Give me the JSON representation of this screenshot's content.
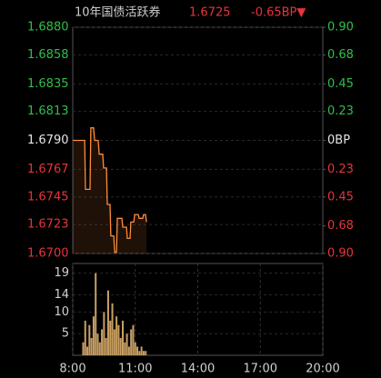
{
  "header": {
    "title": "10年国债活跃券",
    "price": "1.6725",
    "change": "-0.65BP▼"
  },
  "chart_data": [
    {
      "type": "line",
      "color": "#ff8c3a",
      "up_color": "#2fbf4a",
      "down_color": "#e8333a",
      "flat_color": "#e6e6e6",
      "x": [
        8,
        8.57,
        8.61,
        8.83,
        8.87,
        9.0,
        9.05,
        9.22,
        9.27,
        9.44,
        9.48,
        9.62,
        9.66,
        9.79,
        9.83,
        9.97,
        10.01,
        10.1,
        10.14,
        10.36,
        10.4,
        10.58,
        10.62,
        10.75,
        10.79,
        10.93,
        10.97,
        11.14,
        11.19,
        11.36,
        11.4,
        11.49,
        11.54
      ],
      "values": [
        1.679,
        1.679,
        1.6751,
        1.6751,
        1.68,
        1.68,
        1.679,
        1.679,
        1.6779,
        1.6779,
        1.6768,
        1.6768,
        1.6739,
        1.6739,
        1.6714,
        1.6714,
        1.6701,
        1.6701,
        1.6728,
        1.6728,
        1.6721,
        1.6721,
        1.6712,
        1.6712,
        1.6725,
        1.6725,
        1.6731,
        1.6731,
        1.6728,
        1.6728,
        1.6731,
        1.6731,
        1.6725
      ],
      "xlim": [
        8,
        20
      ],
      "ylim": [
        1.67,
        1.688
      ],
      "yticks": [
        {
          "value": 1.688,
          "label": "1.6880"
        },
        1.6858,
        1.6835,
        1.6813,
        {
          "value": 1.679,
          "label": "1.6790"
        },
        1.6767,
        1.6745,
        1.6723,
        {
          "value": 1.67,
          "label": "1.6700"
        }
      ],
      "y2lim": [
        -0.9,
        0.9
      ],
      "y2ticks": [
        {
          "value": 0.9,
          "label": "0.90"
        },
        0.68,
        0.45,
        0.23,
        {
          "value": 0,
          "label": "0BP"
        },
        {
          "value": -0.23,
          "label": "0.23"
        },
        {
          "value": -0.45,
          "label": "0.45"
        },
        {
          "value": -0.68,
          "label": "0.68"
        },
        {
          "value": -0.9,
          "label": "0.90"
        }
      ]
    },
    {
      "type": "bar",
      "color": "#c9a063",
      "x": [
        8.5,
        8.6,
        8.7,
        8.8,
        8.9,
        9.0,
        9.1,
        9.2,
        9.3,
        9.4,
        9.5,
        9.6,
        9.7,
        9.8,
        9.9,
        10.0,
        10.1,
        10.2,
        10.3,
        10.4,
        10.5,
        10.6,
        10.7,
        10.8,
        10.9,
        11.0,
        11.1,
        11.2,
        11.3,
        11.4,
        11.5
      ],
      "values": [
        3,
        8,
        2,
        7,
        4,
        9,
        19,
        5,
        3,
        6,
        10,
        4,
        15,
        8,
        12,
        6,
        9,
        7,
        4,
        8,
        3,
        5,
        2,
        6,
        7,
        3,
        2,
        1,
        2,
        1,
        1
      ],
      "xlim": [
        8,
        20
      ],
      "ylim": [
        0,
        20.6
      ],
      "yticks": [
        5,
        10,
        14,
        19
      ],
      "xticks": [
        {
          "value": 8,
          "label": "8:00"
        },
        {
          "value": 11,
          "label": "11:00"
        },
        {
          "value": 14,
          "label": "14:00"
        },
        {
          "value": 17,
          "label": "17:00"
        },
        {
          "value": 20,
          "label": "20:00"
        }
      ]
    }
  ]
}
